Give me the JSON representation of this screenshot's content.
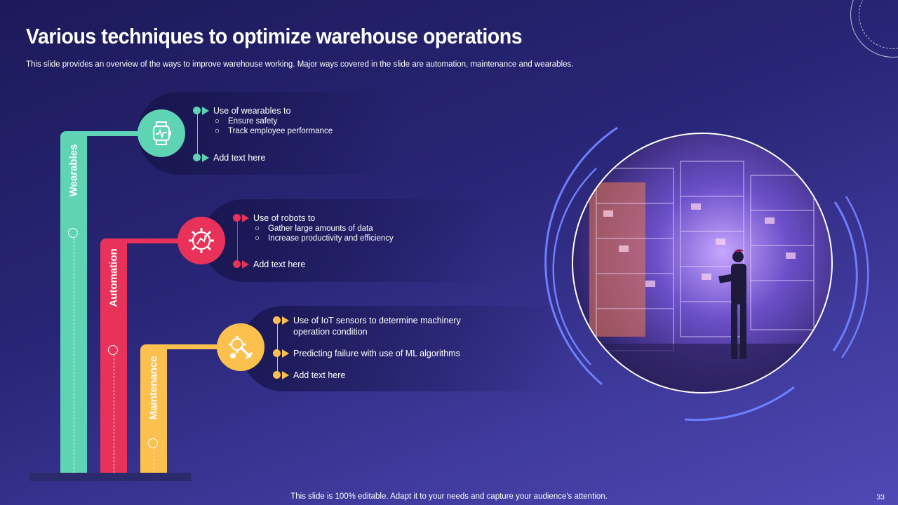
{
  "slide": {
    "title": "Various techniques to optimize warehouse operations",
    "subtitle": "This slide provides an overview of the ways to improve warehouse working. Major ways covered in the slide are automation, maintenance and wearables.",
    "footer": "This slide is 100% editable. Adapt it to your needs and capture your audience's attention.",
    "page_number": "33"
  },
  "colors": {
    "wearables": "#5fd4b4",
    "automation": "#e8325a",
    "maintenance": "#fcc04e",
    "ring": "#6b7fff"
  },
  "pillars": [
    {
      "label": "Wearables",
      "icon": "smartwatch-icon",
      "color": "#5fd4b4",
      "heading": "Use of wearables to",
      "subpoints": [
        "Ensure safety",
        "Track employee performance"
      ],
      "extra": "Add text here"
    },
    {
      "label": "Automation",
      "icon": "robot-gear-icon",
      "color": "#e8325a",
      "heading": "Use of robots to",
      "subpoints": [
        "Gather large amounts of data",
        "Increase productivity and efficiency"
      ],
      "extra": "Add text here"
    },
    {
      "label": "Maintenance",
      "icon": "wrench-gear-icon",
      "color": "#fcc04e",
      "points": [
        "Use of IoT sensors to determine machinery operation condition",
        "Predicting failure with use of ML algorithms",
        "Add text here"
      ]
    }
  ],
  "image": {
    "icon": "warehouse-worker-image"
  }
}
